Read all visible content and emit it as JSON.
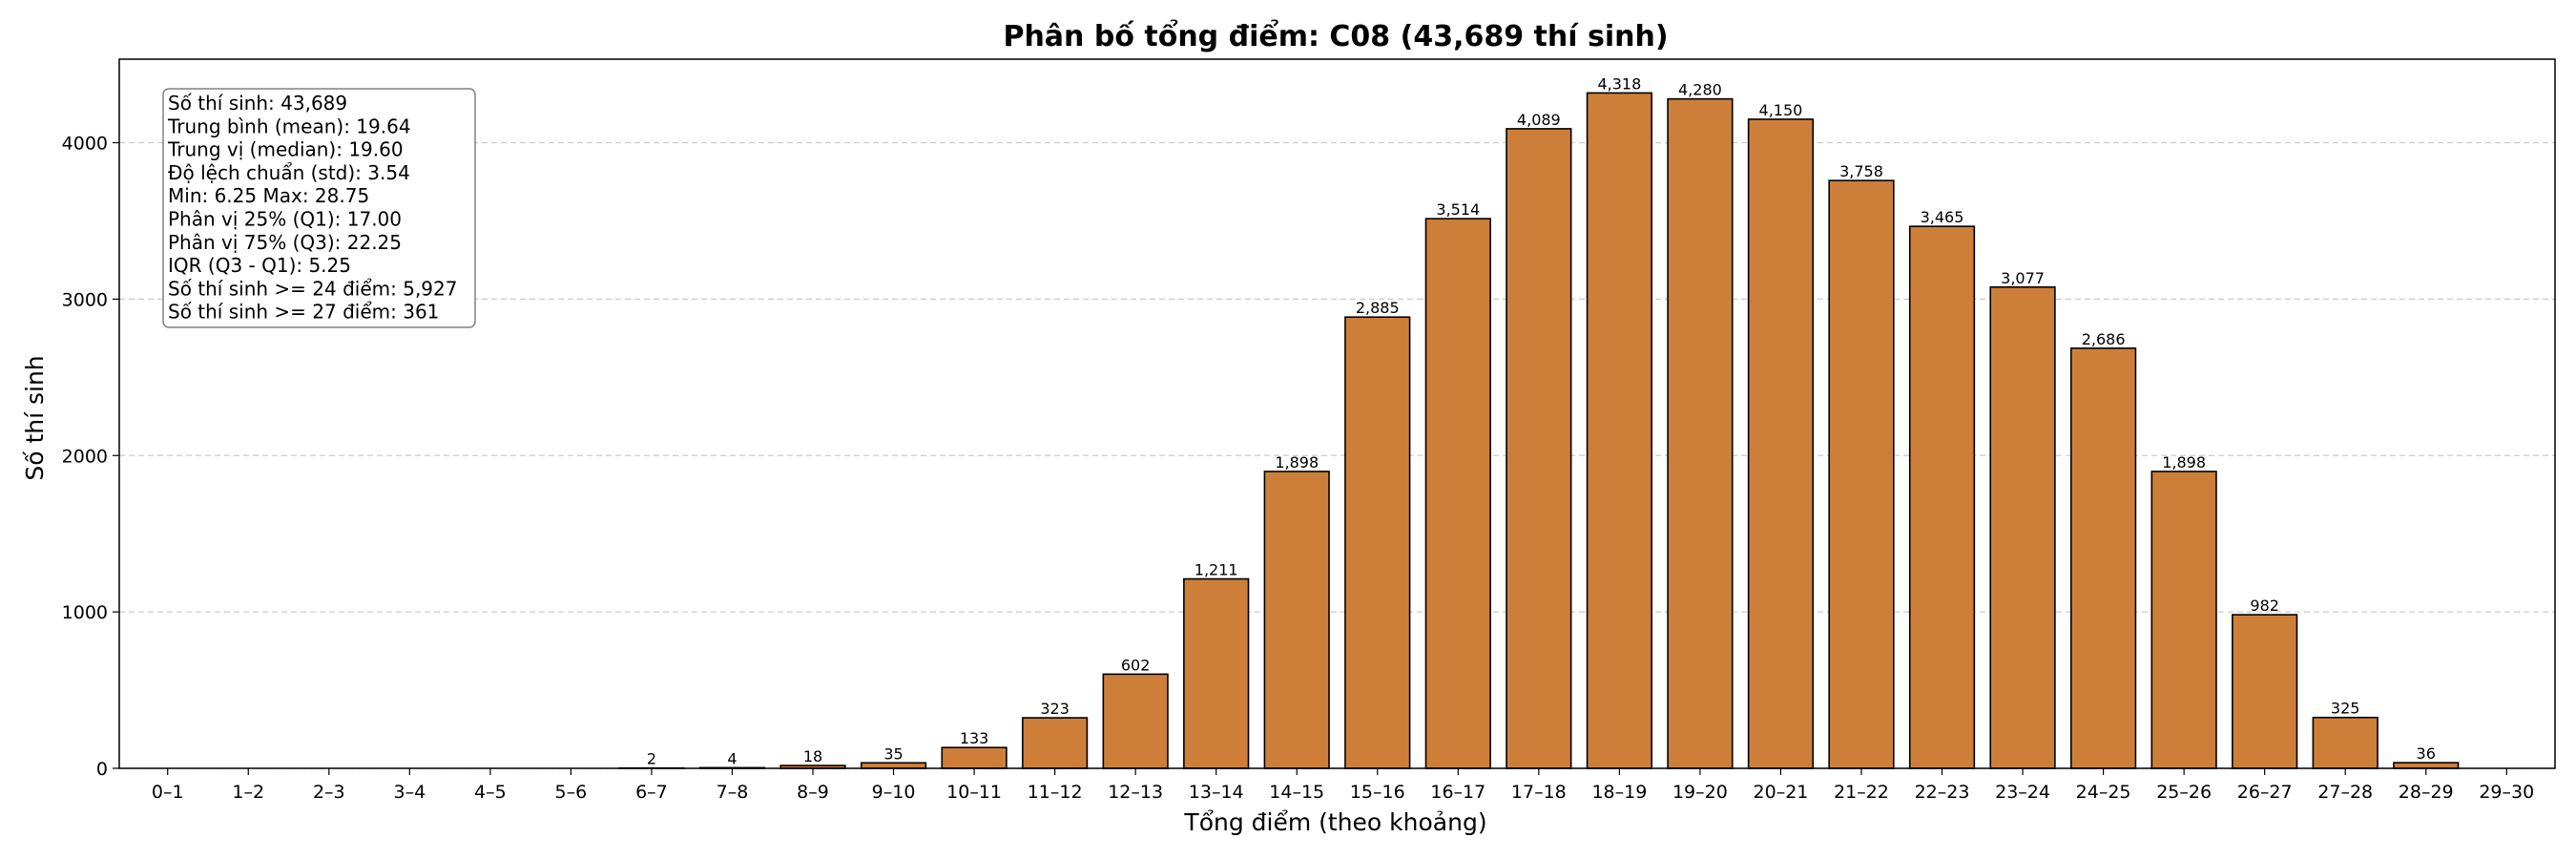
{
  "chart_data": {
    "type": "bar",
    "title": "Phân bố tổng điểm: C08 (43,689 thí sinh)",
    "xlabel": "Tổng điểm (theo khoảng)",
    "ylabel": "Số thí sinh",
    "categories": [
      "0–1",
      "1–2",
      "2–3",
      "3–4",
      "4–5",
      "5–6",
      "6–7",
      "7–8",
      "8–9",
      "9–10",
      "10–11",
      "11–12",
      "12–13",
      "13–14",
      "14–15",
      "15–16",
      "16–17",
      "17–18",
      "18–19",
      "19–20",
      "20–21",
      "21–22",
      "22–23",
      "23–24",
      "24–25",
      "25–26",
      "26–27",
      "27–28",
      "28–29",
      "29–30"
    ],
    "values": [
      0,
      0,
      0,
      0,
      0,
      0,
      2,
      4,
      18,
      35,
      133,
      323,
      602,
      1211,
      1898,
      2885,
      3514,
      4089,
      4318,
      4280,
      4150,
      3758,
      3465,
      3077,
      2686,
      1898,
      982,
      325,
      36,
      0
    ],
    "data_labels": [
      "",
      "",
      "",
      "",
      "",
      "",
      "2",
      "4",
      "18",
      "35",
      "133",
      "323",
      "602",
      "1,211",
      "1,898",
      "2,885",
      "3,514",
      "4,089",
      "4,318",
      "4,280",
      "4,150",
      "3,758",
      "3,465",
      "3,077",
      "2,686",
      "1,898",
      "982",
      "325",
      "36",
      ""
    ],
    "ylim": [
      0,
      4534
    ],
    "yticks": [
      0,
      1000,
      2000,
      3000,
      4000
    ],
    "grid": "horizontal dashed",
    "bar_color": "#cd7f3a",
    "edge_color": "#000000",
    "stats_box": {
      "position": "top-left",
      "lines": [
        "Số thí sinh: 43,689",
        "Trung bình (mean): 19.64",
        "Trung vị (median): 19.60",
        "Độ lệch chuẩn (std): 3.54",
        "Min: 6.25   Max: 28.75",
        "Phân vị 25% (Q1): 17.00",
        "Phân vị 75% (Q3): 22.25",
        "IQR (Q3 - Q1): 5.25",
        "Số thí sinh >= 24 điểm: 5,927",
        "Số thí sinh >= 27 điểm: 361"
      ]
    }
  }
}
